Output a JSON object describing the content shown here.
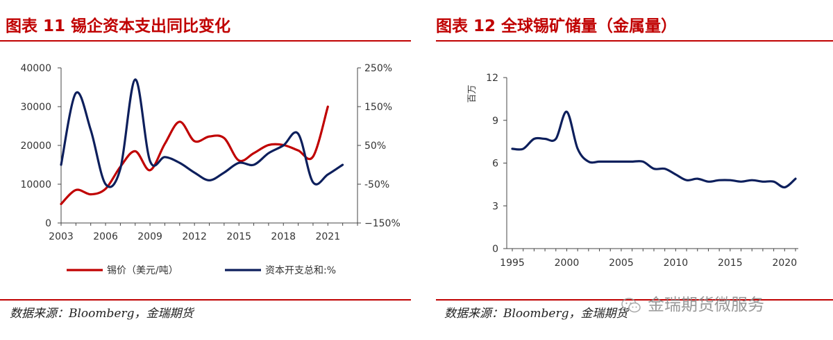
{
  "left": {
    "figure_title": "图表 11 锡企资本支出同比变化",
    "source": "数据来源：Bloomberg，金瑞期货",
    "colors": {
      "series1": "#c00000",
      "series2": "#0d1f5c",
      "rule": "#c00000"
    }
  },
  "right": {
    "figure_title": "图表 12 全球锡矿储量（金属量）",
    "source": "数据来源：Bloomberg，金瑞期货",
    "colors": {
      "series1": "#0d1f5c",
      "rule": "#c00000"
    }
  },
  "watermark": {
    "text": "金瑞期货微服务",
    "icon": "wechat-icon"
  },
  "chart_data": [
    {
      "type": "line",
      "title": "",
      "xlabel": "",
      "ylabel": "",
      "xlim": [
        2003,
        2023
      ],
      "xticks": [
        2003,
        2006,
        2009,
        2012,
        2015,
        2018,
        2021
      ],
      "ylim": [
        0,
        40000
      ],
      "yticks": [
        0,
        10000,
        20000,
        30000,
        40000
      ],
      "y2lim": [
        -150,
        250
      ],
      "y2ticks": [
        -150,
        -50,
        50,
        150,
        250
      ],
      "y2tick_labels": [
        "−150%",
        "-50%",
        "50%",
        "150%",
        "250%"
      ],
      "legend_position": "bottom",
      "series": [
        {
          "name": "锡价（美元/吨）",
          "axis": "left",
          "x": [
            2003,
            2004,
            2005,
            2006,
            2007,
            2008,
            2009,
            2010,
            2011,
            2012,
            2013,
            2014,
            2015,
            2016,
            2017,
            2018,
            2019,
            2020,
            2021
          ],
          "y": [
            4900,
            8500,
            7400,
            8800,
            14500,
            18500,
            13600,
            20400,
            26100,
            21100,
            22300,
            21900,
            16100,
            18000,
            20100,
            20100,
            18700,
            17100,
            30000
          ]
        },
        {
          "name": "资本开支总和:%",
          "axis": "right",
          "x": [
            2003,
            2004,
            2005,
            2006,
            2007,
            2008,
            2009,
            2010,
            2011,
            2012,
            2013,
            2014,
            2015,
            2016,
            2017,
            2018,
            2019,
            2020,
            2021,
            2022
          ],
          "y": [
            0,
            185,
            90,
            -50,
            -10,
            220,
            10,
            20,
            5,
            -20,
            -40,
            -20,
            5,
            0,
            30,
            50,
            80,
            -45,
            -25,
            0
          ]
        }
      ]
    },
    {
      "type": "line",
      "title": "",
      "xlabel": "",
      "ylabel": "百万",
      "xlim": [
        1995,
        2021
      ],
      "xticks": [
        1995,
        2000,
        2005,
        2010,
        2015,
        2020
      ],
      "ylim": [
        0,
        12
      ],
      "yticks": [
        0,
        3,
        6,
        9,
        12
      ],
      "series": [
        {
          "name": "",
          "x": [
            1995,
            1996,
            1997,
            1998,
            1999,
            2000,
            2001,
            2002,
            2003,
            2004,
            2005,
            2006,
            2007,
            2008,
            2009,
            2010,
            2011,
            2012,
            2013,
            2014,
            2015,
            2016,
            2017,
            2018,
            2019,
            2020,
            2021
          ],
          "y": [
            7.0,
            7.0,
            7.7,
            7.7,
            7.7,
            9.6,
            7.0,
            6.1,
            6.1,
            6.1,
            6.1,
            6.1,
            6.1,
            5.6,
            5.6,
            5.2,
            4.8,
            4.9,
            4.7,
            4.8,
            4.8,
            4.7,
            4.8,
            4.7,
            4.7,
            4.3,
            4.9
          ]
        }
      ]
    }
  ]
}
